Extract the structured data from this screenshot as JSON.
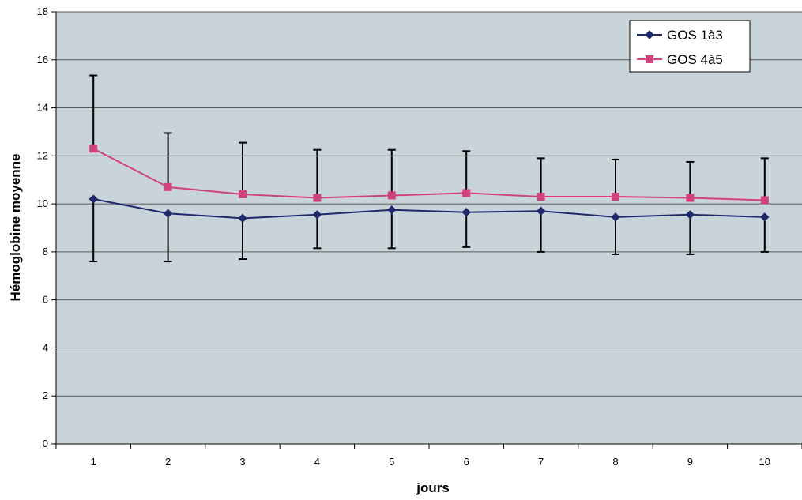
{
  "chart_data": {
    "type": "line",
    "title": "",
    "xlabel": "jours",
    "ylabel": "Hémoglobine moyenne",
    "categories": [
      "1",
      "2",
      "3",
      "4",
      "5",
      "6",
      "7",
      "8",
      "9",
      "10"
    ],
    "ylim": [
      0,
      18
    ],
    "yticks": [
      0,
      2,
      4,
      6,
      8,
      10,
      12,
      14,
      16,
      18
    ],
    "grid": true,
    "legend_position": "top-right",
    "series": [
      {
        "name": "GOS 1à3",
        "color": "#1f2a6b",
        "marker": "diamond",
        "values": [
          10.2,
          9.6,
          9.4,
          9.55,
          9.75,
          9.65,
          9.7,
          9.45,
          9.55,
          9.45
        ],
        "error_low": [
          7.6,
          7.6,
          7.7,
          8.15,
          8.15,
          8.2,
          8.0,
          7.9,
          7.9,
          8.0
        ]
      },
      {
        "name": "GOS 4à5",
        "color": "#d1417e",
        "marker": "square",
        "values": [
          12.3,
          10.7,
          10.4,
          10.25,
          10.35,
          10.45,
          10.3,
          10.3,
          10.25,
          10.15
        ],
        "error_high": [
          15.35,
          12.95,
          12.55,
          12.25,
          12.25,
          12.2,
          11.9,
          11.85,
          11.75,
          11.9
        ]
      }
    ],
    "colors": {
      "plot_background": "#c9d3da",
      "grid": "#5a5a5a",
      "error_bar": "#000000"
    }
  }
}
